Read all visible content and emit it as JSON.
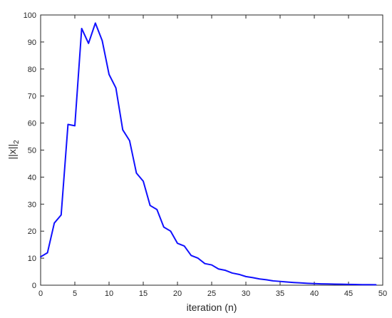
{
  "chart_data": {
    "type": "line",
    "title": "",
    "xlabel": "iteration (n)",
    "ylabel_main": "||x||",
    "ylabel_sub": "2",
    "xlim": [
      0,
      50
    ],
    "ylim": [
      0,
      100
    ],
    "grid": false,
    "line_color": "#1010ff",
    "xticks": [
      0,
      5,
      10,
      15,
      20,
      25,
      30,
      35,
      40,
      45,
      50
    ],
    "yticks": [
      0,
      10,
      20,
      30,
      40,
      50,
      60,
      70,
      80,
      90,
      100
    ],
    "series": [
      {
        "x": [
          0,
          1,
          2,
          3,
          4,
          5,
          6,
          7,
          8,
          9,
          10,
          11,
          12,
          13,
          14,
          15,
          16,
          17,
          18,
          19,
          20,
          21,
          22,
          23,
          24,
          25,
          26,
          27,
          28,
          29,
          30,
          31,
          32,
          33,
          34,
          35,
          36,
          37,
          38,
          39,
          40,
          41,
          42,
          43,
          44,
          45,
          46,
          47,
          48,
          49
        ],
        "values": [
          10.5,
          12,
          23,
          26,
          59.5,
          59,
          95,
          89.5,
          97,
          90.5,
          78,
          73,
          57.5,
          53.5,
          41.5,
          38.5,
          29.5,
          28,
          21.5,
          20,
          15.5,
          14.5,
          11,
          10,
          8,
          7.5,
          6,
          5.5,
          4.5,
          4,
          3.2,
          2.8,
          2.3,
          2,
          1.6,
          1.4,
          1.2,
          1,
          0.85,
          0.7,
          0.6,
          0.5,
          0.45,
          0.4,
          0.35,
          0.3,
          0.25,
          0.2,
          0.2,
          0.15
        ]
      }
    ]
  }
}
